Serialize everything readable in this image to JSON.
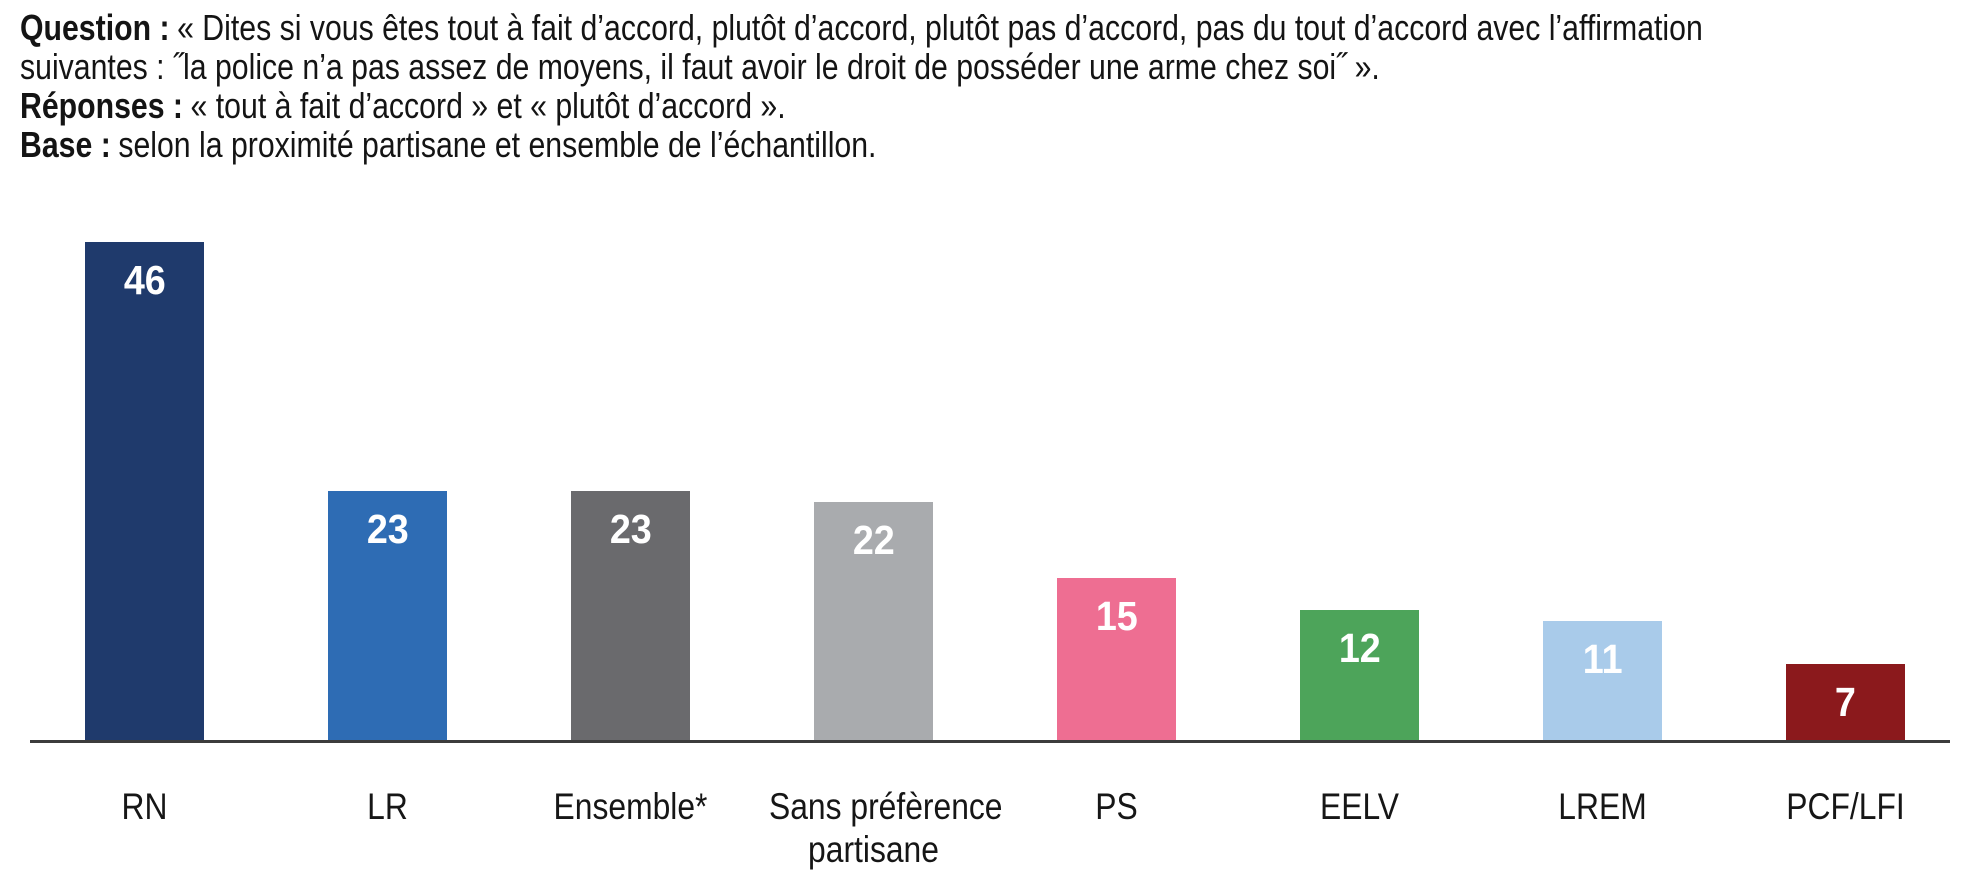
{
  "header": {
    "lines": [
      {
        "label": "Question :",
        "text": "« Dites si vous êtes tout à fait d’accord, plutôt d’accord, plutôt pas d’accord, pas du tout d’accord avec l’affirmation"
      },
      {
        "label": "",
        "text": "suivantes : ˝la police n’a pas assez de moyens, il faut avoir le droit de posséder une arme chez soi˝ »."
      },
      {
        "label": "Réponses :",
        "text": "« tout à fait d’accord » et « plutôt d’accord »."
      },
      {
        "label": "Base :",
        "text": "selon la proximité partisane et ensemble de l’échantillon."
      }
    ]
  },
  "chart_data": {
    "type": "bar",
    "categories": [
      "RN",
      "LR",
      "Ensemble*",
      "Sans préfèrence partisane",
      "PS",
      "EELV",
      "LREM",
      "PCF/LFI"
    ],
    "values": [
      46,
      23,
      23,
      22,
      15,
      12,
      11,
      7
    ],
    "bar_colors": [
      "#1F3A6C",
      "#2E6CB4",
      "#6A6A6D",
      "#A9ABAE",
      "#EE6E92",
      "#4DA45A",
      "#A9CBEA",
      "#8B191C"
    ],
    "value_label_color": "#FFFFFF",
    "value_label_position": "inside-top",
    "axis_baseline_color": "#3C3C3C",
    "text_color": "#161616",
    "ylim": [
      0,
      46
    ],
    "grid": false,
    "legend": false,
    "title": "",
    "xlabel": "",
    "ylabel": ""
  }
}
